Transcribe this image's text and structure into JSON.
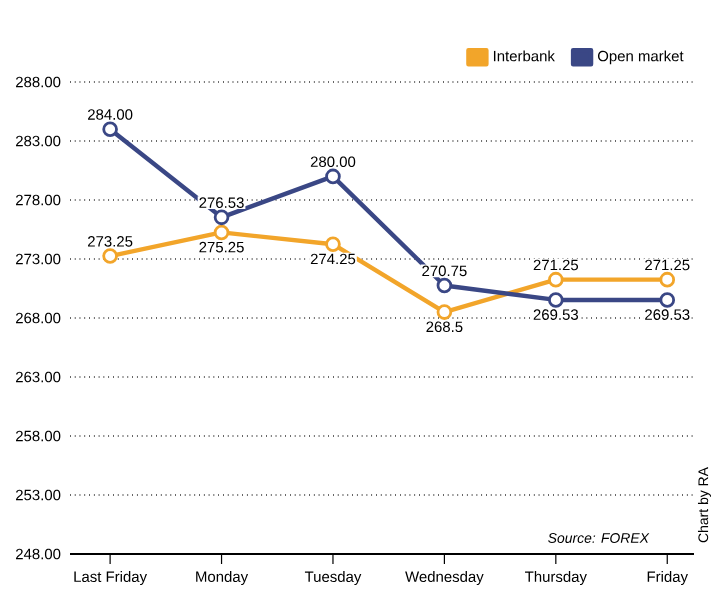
{
  "chart_data": {
    "type": "line",
    "categories": [
      "Last Friday",
      "Monday",
      "Tuesday",
      "Wednesday",
      "Thursday",
      "Friday"
    ],
    "series": [
      {
        "name": "Interbank",
        "color": "#f2a52a",
        "values": [
          273.25,
          275.25,
          274.25,
          268.5,
          271.25,
          271.25
        ],
        "value_labels": [
          "273.25",
          "275.25",
          "274.25",
          "268.5",
          "271.25",
          "271.25"
        ]
      },
      {
        "name": "Open market",
        "color": "#3a4785",
        "values": [
          284,
          276.53,
          280,
          270.75,
          269.53,
          269.53
        ],
        "value_labels": [
          "284.00",
          "276.53",
          "280.00",
          "270.75",
          "269.53",
          "269.53"
        ]
      }
    ],
    "ylim": [
      248,
      288
    ],
    "yticks": [
      {
        "value": 248,
        "label": "248.00"
      },
      {
        "value": 253,
        "label": "253.00"
      },
      {
        "value": 258,
        "label": "258.00"
      },
      {
        "value": 263,
        "label": "263.00"
      },
      {
        "value": 268,
        "label": "268.00"
      },
      {
        "value": 273,
        "label": "273.00"
      },
      {
        "value": 278,
        "label": "278.00"
      },
      {
        "value": 283,
        "label": "283.00"
      },
      {
        "value": 288,
        "label": "288.00"
      }
    ],
    "grid": "y",
    "legend": "top right",
    "marker": "circle",
    "line_style": "solid",
    "annotations": [
      "Source: FOREX",
      "Chart by RA"
    ]
  }
}
